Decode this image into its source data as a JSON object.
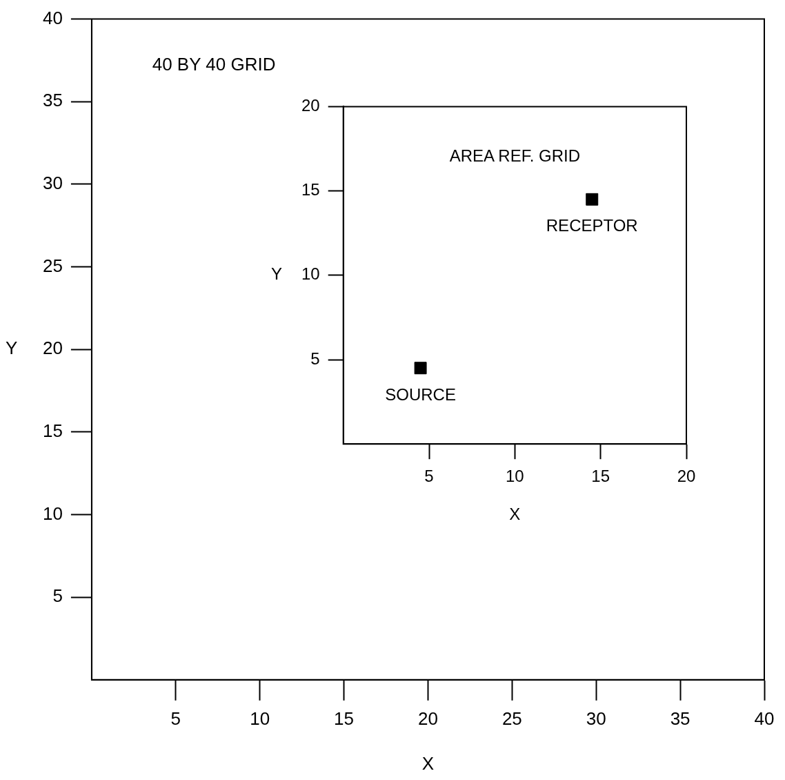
{
  "chart_data": [
    {
      "type": "scatter",
      "xlabel": "X",
      "ylabel": "Y",
      "xlim": [
        0,
        40
      ],
      "ylim": [
        0,
        40
      ],
      "xticks": [
        5,
        10,
        15,
        20,
        25,
        30,
        35,
        40
      ],
      "yticks": [
        5,
        10,
        15,
        20,
        25,
        30,
        35,
        40
      ],
      "annotations": [
        "40 BY 40 GRID"
      ]
    },
    {
      "type": "scatter",
      "title": "AREA REF. GRID",
      "xlabel": "X",
      "ylabel": "Y",
      "xlim": [
        0,
        20
      ],
      "ylim": [
        0,
        20
      ],
      "xticks": [
        5,
        10,
        15,
        20
      ],
      "yticks": [
        5,
        10,
        15,
        20
      ],
      "marker": "square",
      "series": [
        {
          "name": "SOURCE",
          "color": "#000000",
          "x": [
            4.5
          ],
          "values": [
            4.5
          ]
        },
        {
          "name": "RECEPTOR",
          "color": "#000000",
          "x": [
            14.5
          ],
          "values": [
            14.5
          ]
        }
      ]
    }
  ]
}
